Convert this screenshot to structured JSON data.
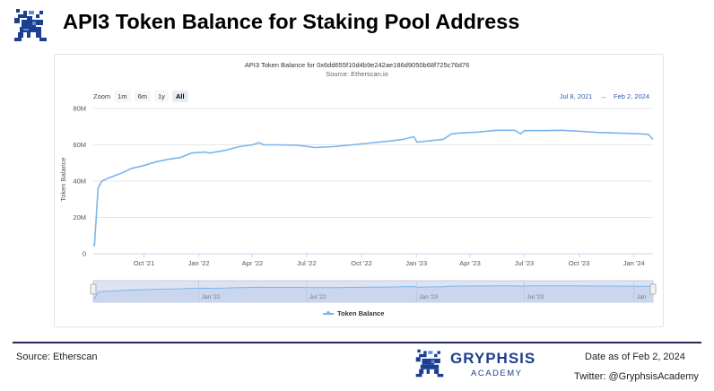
{
  "header": {
    "title": "API3 Token Balance for Staking Pool Address",
    "logo_icon": "gryphon-logo-icon"
  },
  "chart": {
    "title": "API3 Token Balance for 0x6dd655f10d4b9e242ae186d9050b68f725c76d76",
    "subtitle": "Source: Etherscan.io",
    "zoom_label": "Zoom",
    "zoom_buttons": [
      "1m",
      "6m",
      "1y",
      "All"
    ],
    "zoom_selected": "All",
    "range_from": "Jul 8, 2021",
    "range_arrow": "→",
    "range_to": "Feb 2, 2024",
    "legend_label": "Token Balance",
    "line_color": "#7cb5ec"
  },
  "chart_data": {
    "type": "line",
    "title": "API3 Token Balance for 0x6dd655f10d4b9e242ae186d9050b68f725c76d76",
    "subtitle": "Source: Etherscan.io",
    "ylabel": "Token Balance",
    "xlabel": "",
    "ylim": [
      0,
      80000000
    ],
    "xlim": [
      "2021-07-08",
      "2024-02-02"
    ],
    "y_ticks": [
      "0",
      "20M",
      "40M",
      "60M",
      "80M"
    ],
    "x_ticks": [
      "Oct '21",
      "Jan '22",
      "Apr '22",
      "Jul '22",
      "Oct '22",
      "Jan '23",
      "Apr '23",
      "Jul '23",
      "Oct '23",
      "Jan '24"
    ],
    "navigator_ticks": [
      "Jan '22",
      "Jul '22",
      "Jan '23",
      "Jul '23",
      "Jan"
    ],
    "grid": true,
    "legend": "bottom-center",
    "series": [
      {
        "name": "Token Balance",
        "points": [
          [
            "2021-07-08",
            5000000
          ],
          [
            "2021-07-10",
            4500000
          ],
          [
            "2021-07-13",
            20000000
          ],
          [
            "2021-07-16",
            36000000
          ],
          [
            "2021-07-22",
            40000000
          ],
          [
            "2021-08-05",
            42000000
          ],
          [
            "2021-08-25",
            44500000
          ],
          [
            "2021-09-10",
            47000000
          ],
          [
            "2021-09-30",
            48500000
          ],
          [
            "2021-10-20",
            50500000
          ],
          [
            "2021-11-10",
            52000000
          ],
          [
            "2021-12-01",
            53000000
          ],
          [
            "2021-12-20",
            55500000
          ],
          [
            "2022-01-10",
            56000000
          ],
          [
            "2022-01-20",
            55500000
          ],
          [
            "2022-02-15",
            57000000
          ],
          [
            "2022-03-10",
            59000000
          ],
          [
            "2022-04-01",
            60000000
          ],
          [
            "2022-04-12",
            61200000
          ],
          [
            "2022-04-20",
            60000000
          ],
          [
            "2022-05-15",
            60000000
          ],
          [
            "2022-06-15",
            59800000
          ],
          [
            "2022-07-15",
            58500000
          ],
          [
            "2022-08-15",
            59000000
          ],
          [
            "2022-09-15",
            60000000
          ],
          [
            "2022-10-15",
            61000000
          ],
          [
            "2022-11-15",
            62000000
          ],
          [
            "2022-12-10",
            63000000
          ],
          [
            "2022-12-28",
            64500000
          ],
          [
            "2023-01-02",
            61500000
          ],
          [
            "2023-01-31",
            62500000
          ],
          [
            "2023-02-15",
            63000000
          ],
          [
            "2023-03-01",
            66000000
          ],
          [
            "2023-03-15",
            66500000
          ],
          [
            "2023-04-15",
            67000000
          ],
          [
            "2023-05-15",
            68000000
          ],
          [
            "2023-06-15",
            68000000
          ],
          [
            "2023-06-25",
            66000000
          ],
          [
            "2023-07-01",
            67800000
          ],
          [
            "2023-08-01",
            67800000
          ],
          [
            "2023-09-01",
            68000000
          ],
          [
            "2023-10-01",
            67500000
          ],
          [
            "2023-11-01",
            66800000
          ],
          [
            "2023-12-01",
            66500000
          ],
          [
            "2024-01-01",
            66200000
          ],
          [
            "2024-01-25",
            65800000
          ],
          [
            "2024-02-02",
            63000000
          ]
        ]
      }
    ]
  },
  "footer": {
    "source": "Source: Etherscan",
    "brand": "GRYPHSIS",
    "brand_sub": "ACADEMY",
    "date": "Date as of Feb 2, 2024",
    "twitter": "Twitter: @GryphsisAcademy",
    "accent_color": "#1f3e8f",
    "logo_icon": "gryphon-logo-icon"
  }
}
